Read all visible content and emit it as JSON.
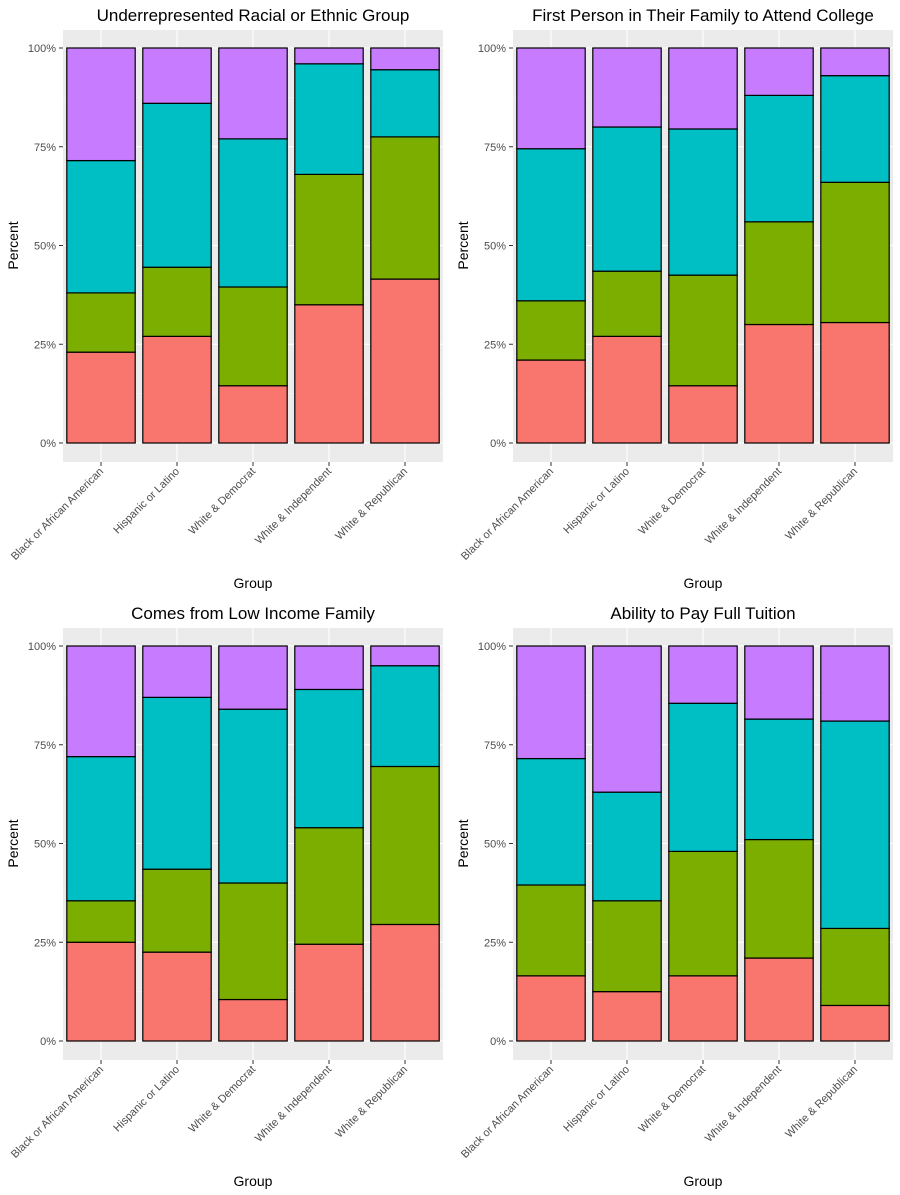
{
  "colors": {
    "panel_bg": "#ebebeb",
    "grid_major": "#ffffff",
    "grid_minor": "#f5f5f5",
    "bar_outline": "#000000",
    "segment_fills": [
      "#f8766d",
      "#7cae00",
      "#00bfc4",
      "#c77cff"
    ],
    "tick_label": "#4d4d4d"
  },
  "chart_data": [
    {
      "type": "bar",
      "stacked": "percent",
      "title": "Underrepresented Racial or Ethnic Group",
      "xlabel": "Group",
      "ylabel": "Percent",
      "ylim": [
        0,
        1
      ],
      "yticks": [
        "0%",
        "25%",
        "50%",
        "75%",
        "100%"
      ],
      "legend": "none",
      "categories": [
        "Black or African American",
        "Hispanic or Latino",
        "White & Democrat",
        "White & Independent",
        "White & Republican"
      ],
      "series": [
        {
          "color": "#f8766d",
          "values": [
            0.23,
            0.27,
            0.145,
            0.35,
            0.415
          ]
        },
        {
          "color": "#7cae00",
          "values": [
            0.15,
            0.175,
            0.25,
            0.33,
            0.36
          ]
        },
        {
          "color": "#00bfc4",
          "values": [
            0.335,
            0.415,
            0.375,
            0.28,
            0.17
          ]
        },
        {
          "color": "#c77cff",
          "values": [
            0.285,
            0.14,
            0.23,
            0.04,
            0.055
          ]
        }
      ]
    },
    {
      "type": "bar",
      "stacked": "percent",
      "title": "First Person in Their Family to Attend College",
      "xlabel": "Group",
      "ylabel": "Percent",
      "ylim": [
        0,
        1
      ],
      "yticks": [
        "0%",
        "25%",
        "50%",
        "75%",
        "100%"
      ],
      "legend": "none",
      "categories": [
        "Black or African American",
        "Hispanic or Latino",
        "White & Democrat",
        "White & Independent",
        "White & Republican"
      ],
      "series": [
        {
          "color": "#f8766d",
          "values": [
            0.21,
            0.27,
            0.145,
            0.3,
            0.305
          ]
        },
        {
          "color": "#7cae00",
          "values": [
            0.15,
            0.165,
            0.28,
            0.26,
            0.355
          ]
        },
        {
          "color": "#00bfc4",
          "values": [
            0.385,
            0.365,
            0.37,
            0.32,
            0.27
          ]
        },
        {
          "color": "#c77cff",
          "values": [
            0.255,
            0.2,
            0.205,
            0.12,
            0.07
          ]
        }
      ]
    },
    {
      "type": "bar",
      "stacked": "percent",
      "title": "Comes from Low Income Family",
      "xlabel": "Group",
      "ylabel": "Percent",
      "ylim": [
        0,
        1
      ],
      "yticks": [
        "0%",
        "25%",
        "50%",
        "75%",
        "100%"
      ],
      "legend": "none",
      "categories": [
        "Black or African American",
        "Hispanic or Latino",
        "White & Democrat",
        "White & Independent",
        "White & Republican"
      ],
      "series": [
        {
          "color": "#f8766d",
          "values": [
            0.25,
            0.225,
            0.105,
            0.245,
            0.295
          ]
        },
        {
          "color": "#7cae00",
          "values": [
            0.105,
            0.21,
            0.295,
            0.295,
            0.4
          ]
        },
        {
          "color": "#00bfc4",
          "values": [
            0.365,
            0.435,
            0.44,
            0.35,
            0.255
          ]
        },
        {
          "color": "#c77cff",
          "values": [
            0.28,
            0.13,
            0.16,
            0.11,
            0.05
          ]
        }
      ]
    },
    {
      "type": "bar",
      "stacked": "percent",
      "title": "Ability to Pay Full Tuition",
      "xlabel": "Group",
      "ylabel": "Percent",
      "ylim": [
        0,
        1
      ],
      "yticks": [
        "0%",
        "25%",
        "50%",
        "75%",
        "100%"
      ],
      "legend": "none",
      "categories": [
        "Black or African American",
        "Hispanic or Latino",
        "White & Democrat",
        "White & Independent",
        "White & Republican"
      ],
      "series": [
        {
          "color": "#f8766d",
          "values": [
            0.165,
            0.125,
            0.165,
            0.21,
            0.09
          ]
        },
        {
          "color": "#7cae00",
          "values": [
            0.23,
            0.23,
            0.315,
            0.3,
            0.195
          ]
        },
        {
          "color": "#00bfc4",
          "values": [
            0.32,
            0.275,
            0.375,
            0.305,
            0.525
          ]
        },
        {
          "color": "#c77cff",
          "values": [
            0.285,
            0.37,
            0.145,
            0.185,
            0.19
          ]
        }
      ]
    }
  ]
}
